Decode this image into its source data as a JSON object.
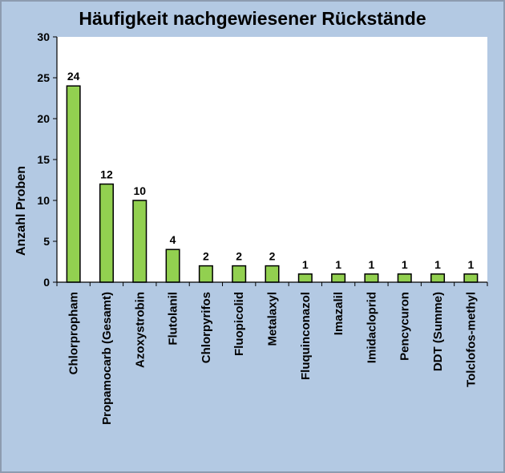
{
  "chart_data": {
    "type": "bar",
    "title": "Häufigkeit nachgewiesener Rückstände",
    "xlabel": "",
    "ylabel": "Anzahl Proben",
    "ylim": [
      0,
      30
    ],
    "yticks": [
      "0",
      "5",
      "10",
      "15",
      "20",
      "25",
      "30"
    ],
    "categories": [
      "Chlorpropham",
      "Propamocarb (Gesamt)",
      "Azoxystrobin",
      "Flutolanil",
      "Chlorpyrifos",
      "Fluopicolid",
      "Metalaxyl",
      "Fluquinconazol",
      "Imazalil",
      "Imidacloprid",
      "Pencycuron",
      "DDT (Summe)",
      "Tolclofos-methyl"
    ],
    "values": [
      24,
      12,
      10,
      4,
      2,
      2,
      2,
      1,
      1,
      1,
      1,
      1,
      1
    ],
    "grid": false,
    "legend": "none",
    "colors": {
      "bar_fill": "#92d050",
      "bar_stroke": "#000000",
      "plot_background": "#ffffff",
      "chart_background": "#b3c9e3"
    }
  }
}
